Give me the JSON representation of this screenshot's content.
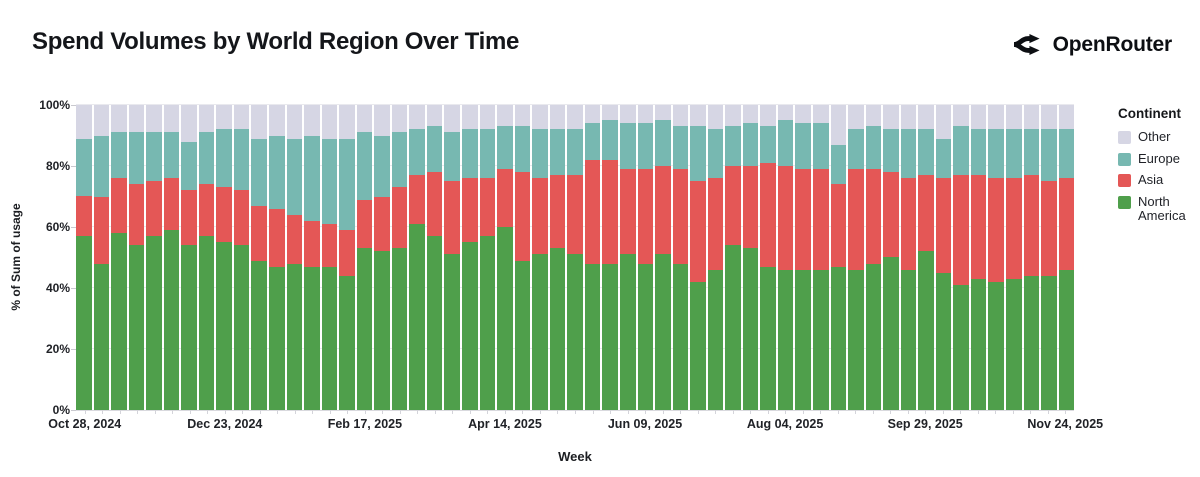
{
  "header": {
    "title": "Spend Volumes by World Region Over Time",
    "brand": "OpenRouter"
  },
  "chart_data": {
    "type": "bar",
    "subtype": "stacked-100-percent-weekly",
    "title": "Spend Volumes by World Region Over Time",
    "xlabel": "Week",
    "ylabel": "% of Sum of usage",
    "ylim": [
      0,
      100
    ],
    "grid": true,
    "y_ticks": [
      "0%",
      "20%",
      "40%",
      "60%",
      "80%",
      "100%"
    ],
    "x_tick_labels": [
      "Oct 28, 2024",
      "Dec 23, 2024",
      "Feb 17, 2025",
      "Apr 14, 2025",
      "Jun 09, 2025",
      "Aug 04, 2025",
      "Sep 29, 2025",
      "Nov 24, 2025"
    ],
    "x_tick_bar_indices": [
      0,
      8,
      16,
      24,
      32,
      40,
      48,
      56
    ],
    "stack_order_bottom_to_top": [
      "North America",
      "Asia",
      "Europe",
      "Other"
    ],
    "colors": {
      "north_america": "#4f9f4b",
      "asia": "#e45756",
      "europe": "#77b8b1",
      "other": "#d6d6e4"
    },
    "legend": {
      "title": "Continent",
      "position": "right",
      "entries": [
        {
          "label": "Other",
          "color": "#d6d6e4"
        },
        {
          "label": "Europe",
          "color": "#77b8b1"
        },
        {
          "label": "Asia",
          "color": "#e45756"
        },
        {
          "label": "North America",
          "color": "#4f9f4b"
        }
      ]
    },
    "weeks": [
      {
        "week": "Oct 28, 2024",
        "north_america": 57,
        "asia": 13,
        "europe": 19,
        "other": 11
      },
      {
        "week": "Nov 04, 2024",
        "north_america": 48,
        "asia": 22,
        "europe": 20,
        "other": 10
      },
      {
        "week": "Nov 11, 2024",
        "north_america": 58,
        "asia": 18,
        "europe": 15,
        "other": 9
      },
      {
        "week": "Nov 18, 2024",
        "north_america": 54,
        "asia": 20,
        "europe": 17,
        "other": 9
      },
      {
        "week": "Nov 25, 2024",
        "north_america": 57,
        "asia": 18,
        "europe": 16,
        "other": 9
      },
      {
        "week": "Dec 02, 2024",
        "north_america": 59,
        "asia": 17,
        "europe": 15,
        "other": 9
      },
      {
        "week": "Dec 09, 2024",
        "north_america": 54,
        "asia": 18,
        "europe": 16,
        "other": 12
      },
      {
        "week": "Dec 16, 2024",
        "north_america": 57,
        "asia": 17,
        "europe": 17,
        "other": 9
      },
      {
        "week": "Dec 23, 2024",
        "north_america": 55,
        "asia": 18,
        "europe": 19,
        "other": 8
      },
      {
        "week": "Dec 30, 2024",
        "north_america": 54,
        "asia": 18,
        "europe": 20,
        "other": 8
      },
      {
        "week": "Jan 06, 2025",
        "north_america": 49,
        "asia": 18,
        "europe": 22,
        "other": 11
      },
      {
        "week": "Jan 13, 2025",
        "north_america": 47,
        "asia": 19,
        "europe": 24,
        "other": 10
      },
      {
        "week": "Jan 20, 2025",
        "north_america": 48,
        "asia": 16,
        "europe": 25,
        "other": 11
      },
      {
        "week": "Jan 27, 2025",
        "north_america": 47,
        "asia": 15,
        "europe": 28,
        "other": 10
      },
      {
        "week": "Feb 03, 2025",
        "north_america": 47,
        "asia": 14,
        "europe": 28,
        "other": 11
      },
      {
        "week": "Feb 10, 2025",
        "north_america": 44,
        "asia": 15,
        "europe": 30,
        "other": 11
      },
      {
        "week": "Feb 17, 2025",
        "north_america": 53,
        "asia": 16,
        "europe": 22,
        "other": 9
      },
      {
        "week": "Feb 24, 2025",
        "north_america": 52,
        "asia": 18,
        "europe": 20,
        "other": 10
      },
      {
        "week": "Mar 03, 2025",
        "north_america": 53,
        "asia": 20,
        "europe": 18,
        "other": 9
      },
      {
        "week": "Mar 10, 2025",
        "north_america": 61,
        "asia": 16,
        "europe": 15,
        "other": 8
      },
      {
        "week": "Mar 17, 2025",
        "north_america": 57,
        "asia": 21,
        "europe": 15,
        "other": 7
      },
      {
        "week": "Mar 24, 2025",
        "north_america": 51,
        "asia": 24,
        "europe": 16,
        "other": 9
      },
      {
        "week": "Mar 31, 2025",
        "north_america": 55,
        "asia": 21,
        "europe": 16,
        "other": 8
      },
      {
        "week": "Apr 07, 2025",
        "north_america": 57,
        "asia": 19,
        "europe": 16,
        "other": 8
      },
      {
        "week": "Apr 14, 2025",
        "north_america": 60,
        "asia": 19,
        "europe": 14,
        "other": 7
      },
      {
        "week": "Apr 21, 2025",
        "north_america": 49,
        "asia": 29,
        "europe": 15,
        "other": 7
      },
      {
        "week": "Apr 28, 2025",
        "north_america": 51,
        "asia": 25,
        "europe": 16,
        "other": 8
      },
      {
        "week": "May 05, 2025",
        "north_america": 53,
        "asia": 24,
        "europe": 15,
        "other": 8
      },
      {
        "week": "May 12, 2025",
        "north_america": 51,
        "asia": 26,
        "europe": 15,
        "other": 8
      },
      {
        "week": "May 19, 2025",
        "north_america": 48,
        "asia": 34,
        "europe": 12,
        "other": 6
      },
      {
        "week": "May 26, 2025",
        "north_america": 48,
        "asia": 34,
        "europe": 13,
        "other": 5
      },
      {
        "week": "Jun 02, 2025",
        "north_america": 51,
        "asia": 28,
        "europe": 15,
        "other": 6
      },
      {
        "week": "Jun 09, 2025",
        "north_america": 48,
        "asia": 31,
        "europe": 15,
        "other": 6
      },
      {
        "week": "Jun 16, 2025",
        "north_america": 51,
        "asia": 29,
        "europe": 15,
        "other": 5
      },
      {
        "week": "Jun 23, 2025",
        "north_america": 48,
        "asia": 31,
        "europe": 14,
        "other": 7
      },
      {
        "week": "Jun 30, 2025",
        "north_america": 42,
        "asia": 33,
        "europe": 18,
        "other": 7
      },
      {
        "week": "Jul 07, 2025",
        "north_america": 46,
        "asia": 30,
        "europe": 16,
        "other": 8
      },
      {
        "week": "Jul 14, 2025",
        "north_america": 54,
        "asia": 26,
        "europe": 13,
        "other": 7
      },
      {
        "week": "Jul 21, 2025",
        "north_america": 53,
        "asia": 27,
        "europe": 14,
        "other": 6
      },
      {
        "week": "Jul 28, 2025",
        "north_america": 47,
        "asia": 34,
        "europe": 12,
        "other": 7
      },
      {
        "week": "Aug 04, 2025",
        "north_america": 46,
        "asia": 34,
        "europe": 15,
        "other": 5
      },
      {
        "week": "Aug 11, 2025",
        "north_america": 46,
        "asia": 33,
        "europe": 15,
        "other": 6
      },
      {
        "week": "Aug 18, 2025",
        "north_america": 46,
        "asia": 33,
        "europe": 15,
        "other": 6
      },
      {
        "week": "Aug 25, 2025",
        "north_america": 47,
        "asia": 27,
        "europe": 13,
        "other": 13
      },
      {
        "week": "Sep 01, 2025",
        "north_america": 46,
        "asia": 33,
        "europe": 13,
        "other": 8
      },
      {
        "week": "Sep 08, 2025",
        "north_america": 48,
        "asia": 31,
        "europe": 14,
        "other": 7
      },
      {
        "week": "Sep 15, 2025",
        "north_america": 50,
        "asia": 28,
        "europe": 14,
        "other": 8
      },
      {
        "week": "Sep 22, 2025",
        "north_america": 46,
        "asia": 30,
        "europe": 16,
        "other": 8
      },
      {
        "week": "Sep 29, 2025",
        "north_america": 52,
        "asia": 25,
        "europe": 15,
        "other": 8
      },
      {
        "week": "Oct 06, 2025",
        "north_america": 45,
        "asia": 31,
        "europe": 13,
        "other": 11
      },
      {
        "week": "Oct 13, 2025",
        "north_america": 41,
        "asia": 36,
        "europe": 16,
        "other": 7
      },
      {
        "week": "Oct 20, 2025",
        "north_america": 43,
        "asia": 34,
        "europe": 15,
        "other": 8
      },
      {
        "week": "Oct 27, 2025",
        "north_america": 42,
        "asia": 34,
        "europe": 16,
        "other": 8
      },
      {
        "week": "Nov 03, 2025",
        "north_america": 43,
        "asia": 33,
        "europe": 16,
        "other": 8
      },
      {
        "week": "Nov 10, 2025",
        "north_america": 44,
        "asia": 33,
        "europe": 15,
        "other": 8
      },
      {
        "week": "Nov 17, 2025",
        "north_america": 44,
        "asia": 31,
        "europe": 17,
        "other": 8
      },
      {
        "week": "Nov 24, 2025",
        "north_america": 46,
        "asia": 30,
        "europe": 16,
        "other": 8
      }
    ]
  }
}
